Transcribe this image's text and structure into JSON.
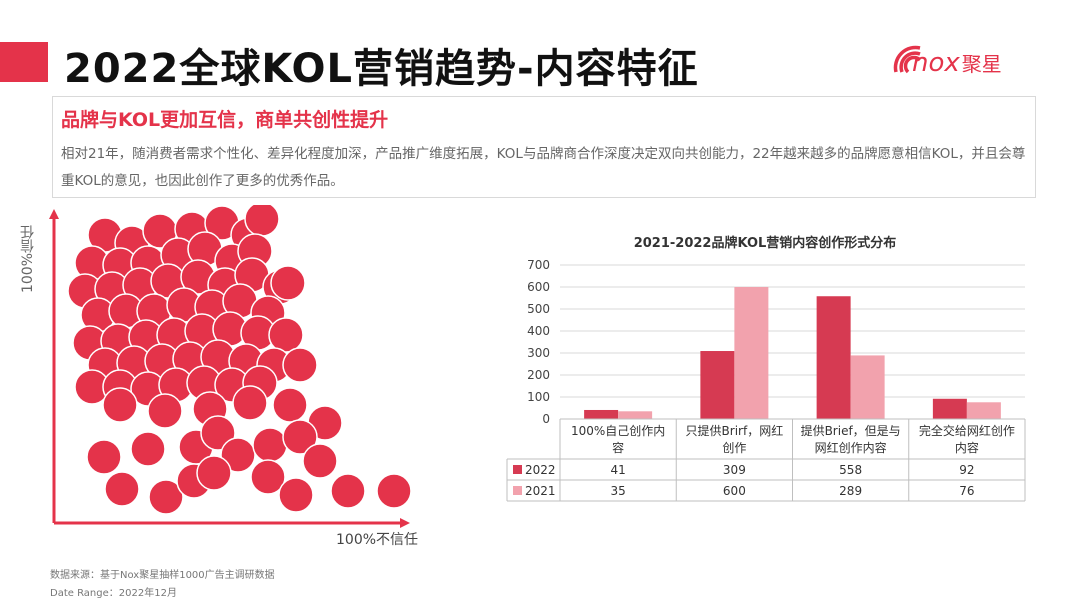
{
  "header": {
    "title": "2022全球KOL营销趋势-内容特征",
    "logo_text": "nox",
    "logo_cn": "聚星",
    "accent_color": "#e4334a"
  },
  "callout": {
    "title": "品牌与KOL更加互信，商单共创性提升",
    "body": "相对21年，随消费者需求个性化、差异化程度加深，产品推广维度拓展，KOL与品牌商合作深度决定双向共创能力，22年越来越多的品牌愿意相信KOL，并且会尊重KOL的意见，也因此创作了更多的优秀作品。"
  },
  "bubble_chart": {
    "y_label": "100%信任",
    "x_label": "100%不信任",
    "bubble_color": "#e4334a"
  },
  "chart_data": {
    "type": "bar",
    "title": "2021-2022品牌KOL营销内容创作形式分布",
    "categories": [
      "100%自己创作内容",
      "只提供Brirf，网红创作",
      "提供Brief，但是与网红创作内容",
      "完全交给网红创作内容"
    ],
    "category_lines": [
      [
        "100%自己创作内",
        "容"
      ],
      [
        "只提供Brirf，网红",
        "创作"
      ],
      [
        "提供Brief，但是与",
        "网红创作内容"
      ],
      [
        "完全交给网红创作",
        "内容"
      ]
    ],
    "series": [
      {
        "name": "2022",
        "values": [
          41,
          309,
          558,
          92
        ],
        "color": "#d63a52"
      },
      {
        "name": "2021",
        "values": [
          35,
          600,
          289,
          76
        ],
        "color": "#f2a2ad"
      }
    ],
    "ylim": [
      0,
      700
    ],
    "yticks": [
      0,
      100,
      200,
      300,
      400,
      500,
      600,
      700
    ],
    "grid": true,
    "legend": "data-table"
  },
  "footer": {
    "source": "数据来源：基于Nox聚星抽样1000广告主调研数据",
    "date_range": "Date Range：2022年12月"
  }
}
